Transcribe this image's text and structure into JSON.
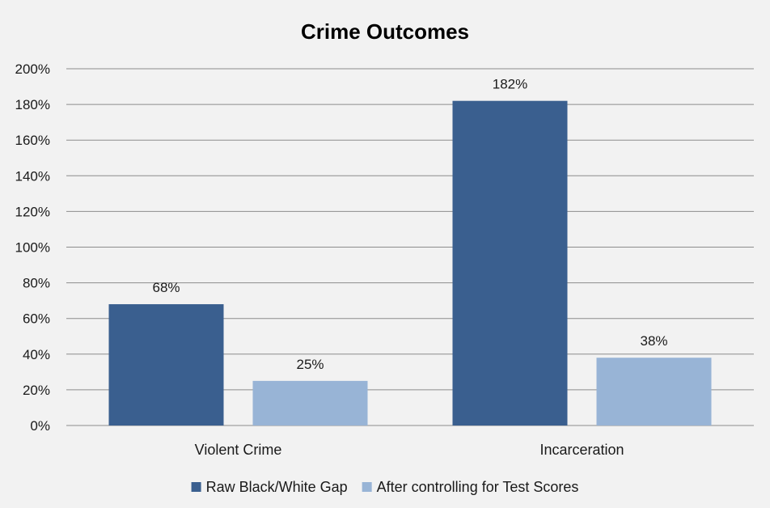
{
  "chart_data": {
    "type": "bar",
    "title": "Crime Outcomes",
    "categories": [
      "Violent Crime",
      "Incarceration"
    ],
    "series": [
      {
        "name": "Raw Black/White Gap",
        "values": [
          68,
          182
        ],
        "labels": [
          "68%",
          "182%"
        ],
        "color": "#3a5f8f"
      },
      {
        "name": "After controlling for Test Scores",
        "values": [
          25,
          38
        ],
        "labels": [
          "25%",
          "38%"
        ],
        "color": "#98b4d6"
      }
    ],
    "ylim": [
      0,
      200
    ],
    "ytick_labels": [
      "0%",
      "20%",
      "40%",
      "60%",
      "80%",
      "100%",
      "120%",
      "140%",
      "160%",
      "180%",
      "200%"
    ],
    "grid": true,
    "legend_position": "bottom"
  }
}
